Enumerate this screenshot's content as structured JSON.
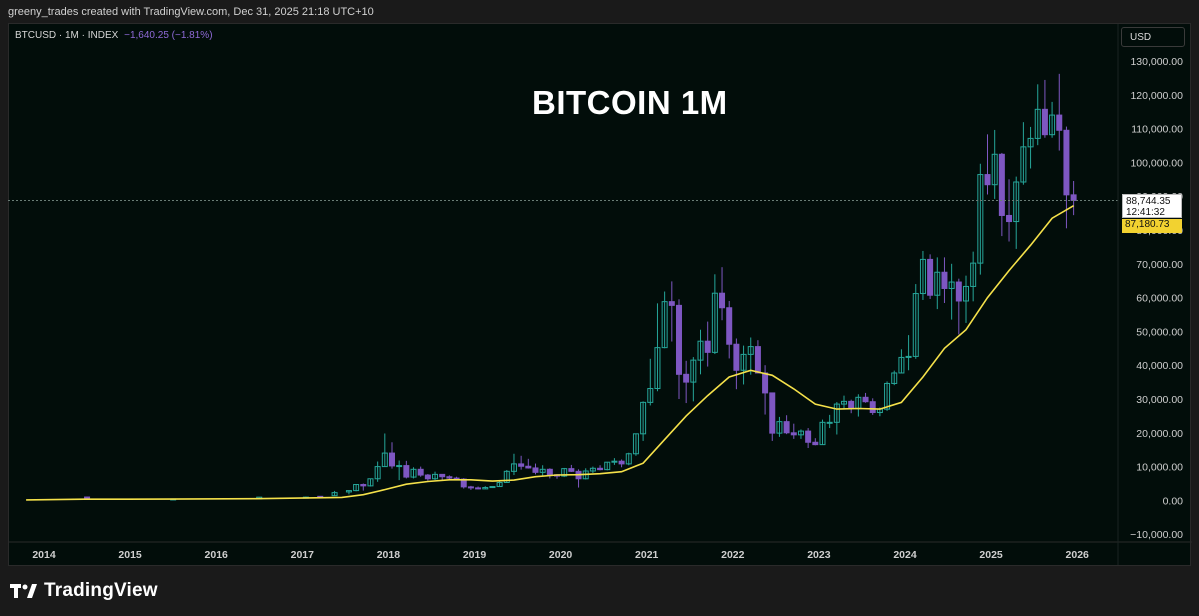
{
  "header": {
    "credit": "greeny_trades created with TradingView.com, Dec 31, 2025 21:18 UTC+10"
  },
  "legend": {
    "symbol": "BTCUSD · 1M · INDEX",
    "change": "−1,640.25 (−1.81%)"
  },
  "toolbar": {
    "currency": "USD"
  },
  "price_tag": {
    "price": "88,744.35",
    "countdown": "12:41:32"
  },
  "ma_tag": {
    "value": "87,180.73"
  },
  "footer": {
    "brand": "TradingView"
  },
  "colors": {
    "up": "#26a69a",
    "down": "#7e57c2",
    "ma": "#f5e14a",
    "background": "#020d0a"
  },
  "chart_data": {
    "type": "candlestick",
    "title": "BITCOIN 1M",
    "ylim": [
      -10000,
      130000
    ],
    "y_ticks": [
      "130,000.00",
      "120,000.00",
      "110,000.00",
      "100,000.00",
      "90,000.00",
      "80,000.00",
      "70,000.00",
      "60,000.00",
      "50,000.00",
      "40,000.00",
      "30,000.00",
      "20,000.00",
      "10,000.00",
      "0.00",
      "−10,000.00"
    ],
    "x_ticks": [
      "2014",
      "2015",
      "2016",
      "2017",
      "2018",
      "2019",
      "2020",
      "2021",
      "2022",
      "2023",
      "2024",
      "2025",
      "2026"
    ],
    "candles": [
      {
        "t": "2014",
        "o": 1000,
        "h": 1100,
        "l": 750,
        "c": 950
      },
      {
        "t": "2015",
        "o": 320,
        "h": 500,
        "l": 200,
        "c": 430
      },
      {
        "t": "2016",
        "o": 430,
        "h": 780,
        "l": 360,
        "c": 960
      },
      {
        "t": "2017-01",
        "o": 970,
        "h": 1150,
        "l": 750,
        "c": 970
      },
      {
        "t": "2017-03",
        "o": 1200,
        "h": 1300,
        "l": 900,
        "c": 1100
      },
      {
        "t": "2017-05",
        "o": 1400,
        "h": 2800,
        "l": 1300,
        "c": 2300
      },
      {
        "t": "2017-07",
        "o": 2500,
        "h": 2900,
        "l": 1800,
        "c": 2900
      },
      {
        "t": "2017-08",
        "o": 2900,
        "h": 4800,
        "l": 2700,
        "c": 4700
      },
      {
        "t": "2017-09",
        "o": 4700,
        "h": 5000,
        "l": 2900,
        "c": 4300
      },
      {
        "t": "2017-10",
        "o": 4300,
        "h": 6400,
        "l": 4100,
        "c": 6400
      },
      {
        "t": "2017-11",
        "o": 6400,
        "h": 11500,
        "l": 5500,
        "c": 10000
      },
      {
        "t": "2017-12",
        "o": 10000,
        "h": 19800,
        "l": 10000,
        "c": 14000
      },
      {
        "t": "2018-01",
        "o": 14000,
        "h": 17200,
        "l": 9400,
        "c": 10200
      },
      {
        "t": "2018-02",
        "o": 10200,
        "h": 11800,
        "l": 6000,
        "c": 10300
      },
      {
        "t": "2018-03",
        "o": 10300,
        "h": 11700,
        "l": 6500,
        "c": 6900
      },
      {
        "t": "2018-04",
        "o": 6900,
        "h": 9800,
        "l": 6500,
        "c": 9200
      },
      {
        "t": "2018-05",
        "o": 9200,
        "h": 10000,
        "l": 7000,
        "c": 7500
      },
      {
        "t": "2018-06",
        "o": 7500,
        "h": 7800,
        "l": 5800,
        "c": 6400
      },
      {
        "t": "2018-07",
        "o": 6400,
        "h": 8500,
        "l": 6000,
        "c": 7700
      },
      {
        "t": "2018-08",
        "o": 7700,
        "h": 7700,
        "l": 5900,
        "c": 7000
      },
      {
        "t": "2018-09",
        "o": 7000,
        "h": 7400,
        "l": 6100,
        "c": 6600
      },
      {
        "t": "2018-10",
        "o": 6600,
        "h": 7000,
        "l": 6200,
        "c": 6300
      },
      {
        "t": "2018-11",
        "o": 6300,
        "h": 6600,
        "l": 3500,
        "c": 4000
      },
      {
        "t": "2018-12",
        "o": 4000,
        "h": 4300,
        "l": 3100,
        "c": 3700
      },
      {
        "t": "2019-01",
        "o": 3700,
        "h": 4100,
        "l": 3300,
        "c": 3400
      },
      {
        "t": "2019-02",
        "o": 3400,
        "h": 4200,
        "l": 3400,
        "c": 3800
      },
      {
        "t": "2019-03",
        "o": 3800,
        "h": 4100,
        "l": 3700,
        "c": 4100
      },
      {
        "t": "2019-04",
        "o": 4100,
        "h": 5600,
        "l": 4000,
        "c": 5300
      },
      {
        "t": "2019-05",
        "o": 5300,
        "h": 9000,
        "l": 5300,
        "c": 8600
      },
      {
        "t": "2019-06",
        "o": 8600,
        "h": 13800,
        "l": 7500,
        "c": 10800
      },
      {
        "t": "2019-07",
        "o": 10800,
        "h": 13200,
        "l": 9100,
        "c": 10100
      },
      {
        "t": "2019-08",
        "o": 10100,
        "h": 12300,
        "l": 9400,
        "c": 9600
      },
      {
        "t": "2019-09",
        "o": 9600,
        "h": 10900,
        "l": 7700,
        "c": 8300
      },
      {
        "t": "2019-10",
        "o": 8300,
        "h": 10400,
        "l": 7300,
        "c": 9200
      },
      {
        "t": "2019-11",
        "o": 9200,
        "h": 9500,
        "l": 6500,
        "c": 7600
      },
      {
        "t": "2019-12",
        "o": 7600,
        "h": 7700,
        "l": 6400,
        "c": 7200
      },
      {
        "t": "2020-01",
        "o": 7200,
        "h": 9600,
        "l": 6900,
        "c": 9400
      },
      {
        "t": "2020-02",
        "o": 9400,
        "h": 10500,
        "l": 8400,
        "c": 8600
      },
      {
        "t": "2020-03",
        "o": 8600,
        "h": 9200,
        "l": 3800,
        "c": 6400
      },
      {
        "t": "2020-04",
        "o": 6400,
        "h": 9500,
        "l": 6200,
        "c": 8700
      },
      {
        "t": "2020-05",
        "o": 8700,
        "h": 10000,
        "l": 8100,
        "c": 9500
      },
      {
        "t": "2020-06",
        "o": 9500,
        "h": 10400,
        "l": 8900,
        "c": 9100
      },
      {
        "t": "2020-07",
        "o": 9100,
        "h": 11400,
        "l": 8900,
        "c": 11300
      },
      {
        "t": "2020-08",
        "o": 11300,
        "h": 12500,
        "l": 10500,
        "c": 11600
      },
      {
        "t": "2020-09",
        "o": 11600,
        "h": 12100,
        "l": 9800,
        "c": 10800
      },
      {
        "t": "2020-10",
        "o": 10800,
        "h": 14100,
        "l": 10400,
        "c": 13800
      },
      {
        "t": "2020-11",
        "o": 13800,
        "h": 19800,
        "l": 13200,
        "c": 19700
      },
      {
        "t": "2020-12",
        "o": 19700,
        "h": 29300,
        "l": 17600,
        "c": 29000
      },
      {
        "t": "2021-01",
        "o": 29000,
        "h": 41900,
        "l": 28100,
        "c": 33100
      },
      {
        "t": "2021-02",
        "o": 33100,
        "h": 58300,
        "l": 32300,
        "c": 45200
      },
      {
        "t": "2021-03",
        "o": 45200,
        "h": 61800,
        "l": 45000,
        "c": 58800
      },
      {
        "t": "2021-04",
        "o": 58800,
        "h": 64800,
        "l": 47000,
        "c": 57700
      },
      {
        "t": "2021-05",
        "o": 57700,
        "h": 59500,
        "l": 30000,
        "c": 37300
      },
      {
        "t": "2021-06",
        "o": 37300,
        "h": 41300,
        "l": 28800,
        "c": 35000
      },
      {
        "t": "2021-07",
        "o": 35000,
        "h": 42400,
        "l": 29300,
        "c": 41500
      },
      {
        "t": "2021-08",
        "o": 41500,
        "h": 50500,
        "l": 37300,
        "c": 47100
      },
      {
        "t": "2021-09",
        "o": 47100,
        "h": 52900,
        "l": 39600,
        "c": 43800
      },
      {
        "t": "2021-10",
        "o": 43800,
        "h": 66900,
        "l": 43300,
        "c": 61300
      },
      {
        "t": "2021-11",
        "o": 61300,
        "h": 69000,
        "l": 53300,
        "c": 57000
      },
      {
        "t": "2021-12",
        "o": 57000,
        "h": 59000,
        "l": 42000,
        "c": 46200
      },
      {
        "t": "2022-01",
        "o": 46200,
        "h": 47900,
        "l": 32900,
        "c": 38500
      },
      {
        "t": "2022-02",
        "o": 38500,
        "h": 45800,
        "l": 34300,
        "c": 43200
      },
      {
        "t": "2022-03",
        "o": 43200,
        "h": 48200,
        "l": 37200,
        "c": 45500
      },
      {
        "t": "2022-04",
        "o": 45500,
        "h": 47400,
        "l": 37700,
        "c": 37700
      },
      {
        "t": "2022-05",
        "o": 37700,
        "h": 40000,
        "l": 25400,
        "c": 31800
      },
      {
        "t": "2022-06",
        "o": 31800,
        "h": 31900,
        "l": 17600,
        "c": 19900
      },
      {
        "t": "2022-07",
        "o": 19900,
        "h": 24700,
        "l": 18800,
        "c": 23300
      },
      {
        "t": "2022-08",
        "o": 23300,
        "h": 25200,
        "l": 19600,
        "c": 20000
      },
      {
        "t": "2022-09",
        "o": 20000,
        "h": 22700,
        "l": 18200,
        "c": 19400
      },
      {
        "t": "2022-10",
        "o": 19400,
        "h": 21000,
        "l": 18200,
        "c": 20500
      },
      {
        "t": "2022-11",
        "o": 20500,
        "h": 21400,
        "l": 15500,
        "c": 17200
      },
      {
        "t": "2022-12",
        "o": 17200,
        "h": 18400,
        "l": 16300,
        "c": 16500
      },
      {
        "t": "2023-01",
        "o": 16500,
        "h": 23900,
        "l": 16500,
        "c": 23100
      },
      {
        "t": "2023-02",
        "o": 23100,
        "h": 25300,
        "l": 21400,
        "c": 23100
      },
      {
        "t": "2023-03",
        "o": 23100,
        "h": 29100,
        "l": 19500,
        "c": 28500
      },
      {
        "t": "2023-04",
        "o": 28500,
        "h": 31000,
        "l": 26900,
        "c": 29300
      },
      {
        "t": "2023-05",
        "o": 29300,
        "h": 29800,
        "l": 25800,
        "c": 27200
      },
      {
        "t": "2023-06",
        "o": 27200,
        "h": 31400,
        "l": 24800,
        "c": 30500
      },
      {
        "t": "2023-07",
        "o": 30500,
        "h": 31800,
        "l": 28900,
        "c": 29200
      },
      {
        "t": "2023-08",
        "o": 29200,
        "h": 30200,
        "l": 25300,
        "c": 26000
      },
      {
        "t": "2023-09",
        "o": 26000,
        "h": 27500,
        "l": 24900,
        "c": 27000
      },
      {
        "t": "2023-10",
        "o": 27000,
        "h": 35200,
        "l": 26500,
        "c": 34600
      },
      {
        "t": "2023-11",
        "o": 34600,
        "h": 38400,
        "l": 34100,
        "c": 37700
      },
      {
        "t": "2023-12",
        "o": 37700,
        "h": 44700,
        "l": 37600,
        "c": 42300
      },
      {
        "t": "2024-01",
        "o": 42300,
        "h": 48900,
        "l": 38500,
        "c": 42600
      },
      {
        "t": "2024-02",
        "o": 42600,
        "h": 64000,
        "l": 41900,
        "c": 61200
      },
      {
        "t": "2024-03",
        "o": 61200,
        "h": 73800,
        "l": 59300,
        "c": 71300
      },
      {
        "t": "2024-04",
        "o": 71300,
        "h": 72800,
        "l": 59600,
        "c": 60700
      },
      {
        "t": "2024-05",
        "o": 60700,
        "h": 71900,
        "l": 56600,
        "c": 67500
      },
      {
        "t": "2024-06",
        "o": 67500,
        "h": 71900,
        "l": 58400,
        "c": 62700
      },
      {
        "t": "2024-07",
        "o": 62700,
        "h": 70000,
        "l": 53500,
        "c": 64600
      },
      {
        "t": "2024-08",
        "o": 64600,
        "h": 65600,
        "l": 49100,
        "c": 59000
      },
      {
        "t": "2024-09",
        "o": 59000,
        "h": 66500,
        "l": 52500,
        "c": 63300
      },
      {
        "t": "2024-10",
        "o": 63300,
        "h": 73600,
        "l": 58900,
        "c": 70200
      },
      {
        "t": "2024-11",
        "o": 70200,
        "h": 99600,
        "l": 66800,
        "c": 96400
      },
      {
        "t": "2024-12",
        "o": 96400,
        "h": 108300,
        "l": 90500,
        "c": 93400
      },
      {
        "t": "2025-01",
        "o": 93400,
        "h": 109600,
        "l": 89200,
        "c": 102400
      },
      {
        "t": "2025-02",
        "o": 102400,
        "h": 102800,
        "l": 78200,
        "c": 84300
      },
      {
        "t": "2025-03",
        "o": 84300,
        "h": 95000,
        "l": 76600,
        "c": 82500
      },
      {
        "t": "2025-04",
        "o": 82500,
        "h": 95800,
        "l": 74400,
        "c": 94200
      },
      {
        "t": "2025-05",
        "o": 94200,
        "h": 111900,
        "l": 93400,
        "c": 104600
      },
      {
        "t": "2025-06",
        "o": 104600,
        "h": 110500,
        "l": 98200,
        "c": 107100
      },
      {
        "t": "2025-07",
        "o": 107100,
        "h": 123100,
        "l": 105100,
        "c": 115700
      },
      {
        "t": "2025-08",
        "o": 115700,
        "h": 124400,
        "l": 107300,
        "c": 108200
      },
      {
        "t": "2025-09",
        "o": 108200,
        "h": 117900,
        "l": 107300,
        "c": 114000
      },
      {
        "t": "2025-10",
        "o": 114000,
        "h": 126200,
        "l": 103500,
        "c": 109500
      },
      {
        "t": "2025-11",
        "o": 109500,
        "h": 110600,
        "l": 80500,
        "c": 90400
      },
      {
        "t": "2025-12",
        "o": 90400,
        "h": 94500,
        "l": 84400,
        "c": 88744.35
      }
    ],
    "series": [
      {
        "type": "line",
        "values": [
          {
            "t": "2013-10",
            "v": 150
          },
          {
            "t": "2014-06",
            "v": 350
          },
          {
            "t": "2015-06",
            "v": 380
          },
          {
            "t": "2016-06",
            "v": 500
          },
          {
            "t": "2017-06",
            "v": 900
          },
          {
            "t": "2017-09",
            "v": 1700
          },
          {
            "t": "2017-12",
            "v": 3200
          },
          {
            "t": "2018-03",
            "v": 4800
          },
          {
            "t": "2018-06",
            "v": 5600
          },
          {
            "t": "2018-09",
            "v": 6100
          },
          {
            "t": "2018-12",
            "v": 6100
          },
          {
            "t": "2019-03",
            "v": 5700
          },
          {
            "t": "2019-06",
            "v": 6000
          },
          {
            "t": "2019-09",
            "v": 7000
          },
          {
            "t": "2019-12",
            "v": 7500
          },
          {
            "t": "2020-03",
            "v": 7600
          },
          {
            "t": "2020-06",
            "v": 7900
          },
          {
            "t": "2020-09",
            "v": 8500
          },
          {
            "t": "2020-12",
            "v": 11000
          },
          {
            "t": "2021-03",
            "v": 18000
          },
          {
            "t": "2021-06",
            "v": 25000
          },
          {
            "t": "2021-09",
            "v": 31000
          },
          {
            "t": "2021-12",
            "v": 36500
          },
          {
            "t": "2022-03",
            "v": 38500
          },
          {
            "t": "2022-06",
            "v": 37000
          },
          {
            "t": "2022-09",
            "v": 33000
          },
          {
            "t": "2022-12",
            "v": 28500
          },
          {
            "t": "2023-03",
            "v": 27000
          },
          {
            "t": "2023-06",
            "v": 27200
          },
          {
            "t": "2023-09",
            "v": 27000
          },
          {
            "t": "2023-12",
            "v": 29000
          },
          {
            "t": "2024-03",
            "v": 36500
          },
          {
            "t": "2024-06",
            "v": 45000
          },
          {
            "t": "2024-09",
            "v": 50500
          },
          {
            "t": "2024-12",
            "v": 60000
          },
          {
            "t": "2025-03",
            "v": 68000
          },
          {
            "t": "2025-06",
            "v": 75500
          },
          {
            "t": "2025-09",
            "v": 83500
          },
          {
            "t": "2025-12",
            "v": 87180.73
          }
        ]
      }
    ]
  }
}
